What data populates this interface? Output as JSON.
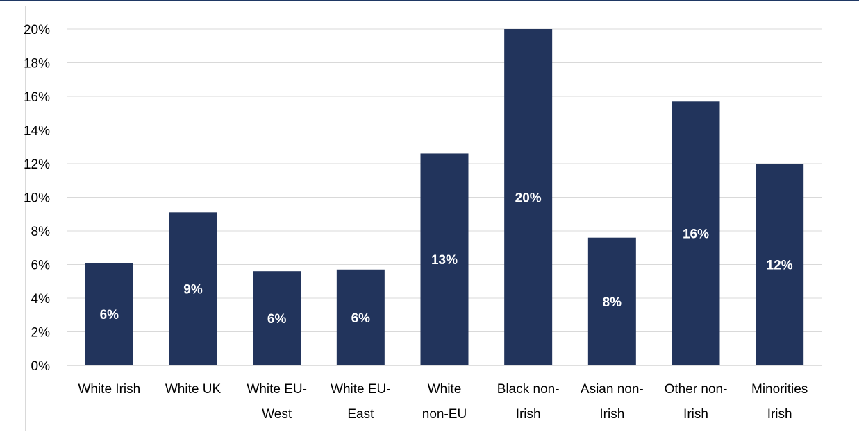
{
  "chart_data": {
    "type": "bar",
    "categories": [
      [
        "White Irish"
      ],
      [
        "White UK"
      ],
      [
        "White EU-",
        "West"
      ],
      [
        "White EU-",
        "East"
      ],
      [
        "White",
        "non-EU"
      ],
      [
        "Black non-",
        "Irish"
      ],
      [
        "Asian non-",
        "Irish"
      ],
      [
        "Other non-",
        "Irish"
      ],
      [
        "Minorities",
        "Irish"
      ]
    ],
    "values": [
      6.1,
      9.1,
      5.6,
      5.7,
      12.6,
      20.0,
      7.6,
      15.7,
      12.0
    ],
    "data_labels": [
      "6%",
      "9%",
      "6%",
      "6%",
      "13%",
      "20%",
      "8%",
      "16%",
      "12%"
    ],
    "ylim": [
      0,
      20
    ],
    "yticks": [
      0,
      2,
      4,
      6,
      8,
      10,
      12,
      14,
      16,
      18,
      20
    ],
    "ytick_labels": [
      "0%",
      "2%",
      "4%",
      "6%",
      "8%",
      "10%",
      "12%",
      "14%",
      "16%",
      "18%",
      "20%"
    ],
    "grid": true,
    "legend": "none",
    "colors": {
      "bar": "#22345c",
      "grid": "#d9d9d9",
      "axis": "#bfbfbf",
      "top_rule": "#1f3864"
    }
  }
}
